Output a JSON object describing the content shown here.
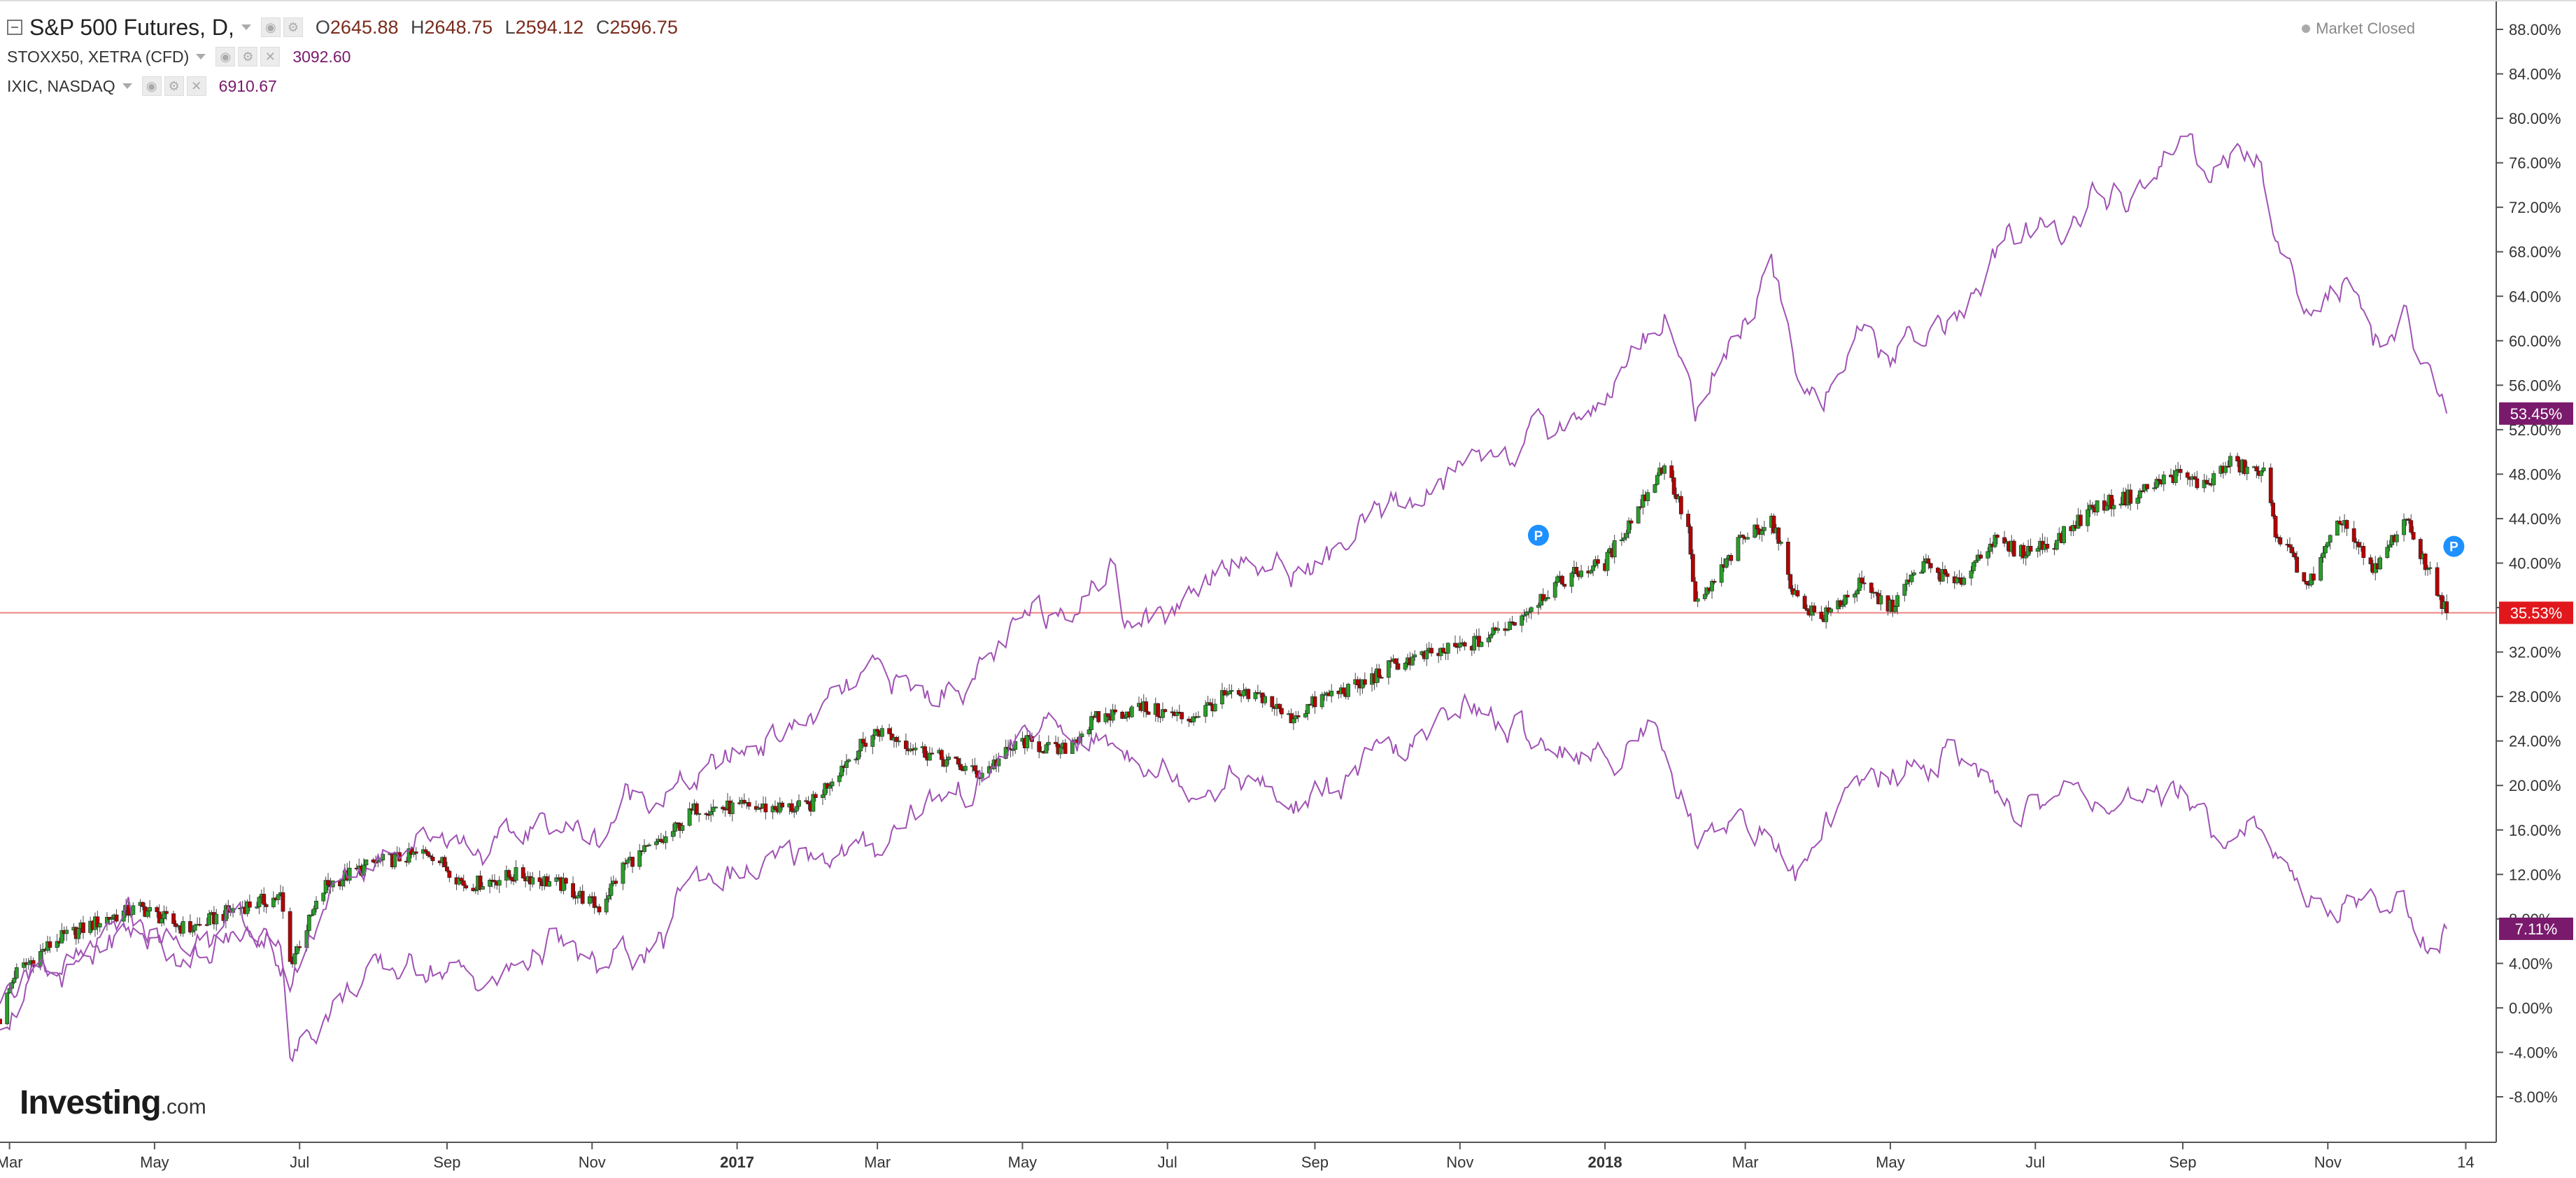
{
  "chart_data": {
    "type": "line",
    "title": "S&P 500 Futures, D,",
    "ohlc": {
      "o_label": "O",
      "o": "2645.88",
      "h_label": "H",
      "h": "2648.75",
      "l_label": "L",
      "l": "2594.12",
      "c_label": "C",
      "c": "2596.75"
    },
    "comparisons": [
      {
        "name": "STOXX50, XETRA (CFD)",
        "last": "3092.60"
      },
      {
        "name": "IXIC, NASDAQ",
        "last": "6910.67"
      }
    ],
    "status": "Market Closed",
    "y_axis": {
      "unit": "%",
      "ylim": [
        -10,
        90
      ],
      "ticks": [
        "88.00%",
        "84.00%",
        "80.00%",
        "76.00%",
        "72.00%",
        "68.00%",
        "64.00%",
        "60.00%",
        "56.00%",
        "52.00%",
        "48.00%",
        "44.00%",
        "40.00%",
        "36.00%",
        "32.00%",
        "28.00%",
        "24.00%",
        "20.00%",
        "16.00%",
        "12.00%",
        "8.00%",
        "4.00%",
        "0.00%",
        "-4.00%",
        "-8.00%"
      ]
    },
    "x_axis": {
      "xlim": [
        "2016-02-26",
        "2019-01-02"
      ],
      "ticks": [
        {
          "date": "2016-03-01",
          "label": "Mar",
          "bold": false
        },
        {
          "date": "2016-05-01",
          "label": "May",
          "bold": false
        },
        {
          "date": "2016-07-01",
          "label": "Jul",
          "bold": false
        },
        {
          "date": "2016-09-01",
          "label": "Sep",
          "bold": false
        },
        {
          "date": "2016-11-01",
          "label": "Nov",
          "bold": false
        },
        {
          "date": "2017-01-01",
          "label": "2017",
          "bold": true
        },
        {
          "date": "2017-03-01",
          "label": "Mar",
          "bold": false
        },
        {
          "date": "2017-05-01",
          "label": "May",
          "bold": false
        },
        {
          "date": "2017-07-01",
          "label": "Jul",
          "bold": false
        },
        {
          "date": "2017-09-01",
          "label": "Sep",
          "bold": false
        },
        {
          "date": "2017-11-01",
          "label": "Nov",
          "bold": false
        },
        {
          "date": "2018-01-01",
          "label": "2018",
          "bold": true
        },
        {
          "date": "2018-03-01",
          "label": "Mar",
          "bold": false
        },
        {
          "date": "2018-05-01",
          "label": "May",
          "bold": false
        },
        {
          "date": "2018-07-01",
          "label": "Jul",
          "bold": false
        },
        {
          "date": "2018-09-01",
          "label": "Sep",
          "bold": false
        },
        {
          "date": "2018-11-01",
          "label": "Nov",
          "bold": false
        },
        {
          "date": "2018-12-29",
          "label": "14",
          "bold": false
        }
      ]
    },
    "series": [
      {
        "style": "candles",
        "color_up": "#2a9d2a",
        "color_down": "#b30000",
        "points": [
          [
            "2016-02-26",
            -1
          ],
          [
            "2016-03-03",
            3
          ],
          [
            "2016-03-20",
            6
          ],
          [
            "2016-04-10",
            8
          ],
          [
            "2016-04-25",
            9
          ],
          [
            "2016-05-15",
            7
          ],
          [
            "2016-06-05",
            9
          ],
          [
            "2016-06-23",
            10
          ],
          [
            "2016-06-27",
            4
          ],
          [
            "2016-07-12",
            11
          ],
          [
            "2016-08-01",
            13
          ],
          [
            "2016-08-25",
            14
          ],
          [
            "2016-09-09",
            11
          ],
          [
            "2016-10-01",
            12
          ],
          [
            "2016-10-20",
            11
          ],
          [
            "2016-11-04",
            9
          ],
          [
            "2016-11-15",
            13
          ],
          [
            "2016-12-01",
            15
          ],
          [
            "2016-12-15",
            18
          ],
          [
            "2017-01-10",
            18
          ],
          [
            "2017-01-31",
            18
          ],
          [
            "2017-02-15",
            22
          ],
          [
            "2017-03-01",
            25
          ],
          [
            "2017-03-21",
            23
          ],
          [
            "2017-04-13",
            21
          ],
          [
            "2017-05-01",
            24
          ],
          [
            "2017-05-17",
            23
          ],
          [
            "2017-06-01",
            26
          ],
          [
            "2017-06-20",
            27
          ],
          [
            "2017-07-10",
            26
          ],
          [
            "2017-07-25",
            28
          ],
          [
            "2017-08-10",
            28
          ],
          [
            "2017-08-21",
            26
          ],
          [
            "2017-09-05",
            28
          ],
          [
            "2017-09-20",
            29
          ],
          [
            "2017-10-05",
            31
          ],
          [
            "2017-10-25",
            32
          ],
          [
            "2017-11-10",
            33
          ],
          [
            "2017-11-25",
            35
          ],
          [
            "2017-12-05",
            37
          ],
          [
            "2017-12-18",
            39
          ],
          [
            "2018-01-01",
            40
          ],
          [
            "2018-01-15",
            45
          ],
          [
            "2018-01-26",
            49
          ],
          [
            "2018-02-05",
            43
          ],
          [
            "2018-02-08",
            36
          ],
          [
            "2018-02-15",
            38
          ],
          [
            "2018-02-27",
            42
          ],
          [
            "2018-03-12",
            44
          ],
          [
            "2018-03-22",
            37
          ],
          [
            "2018-04-02",
            35
          ],
          [
            "2018-04-18",
            38
          ],
          [
            "2018-05-01",
            36
          ],
          [
            "2018-05-15",
            40
          ],
          [
            "2018-05-29",
            38
          ],
          [
            "2018-06-12",
            42
          ],
          [
            "2018-06-25",
            41
          ],
          [
            "2018-07-10",
            42
          ],
          [
            "2018-07-25",
            45
          ],
          [
            "2018-08-10",
            46
          ],
          [
            "2018-08-29",
            48
          ],
          [
            "2018-09-10",
            47
          ],
          [
            "2018-09-21",
            49
          ],
          [
            "2018-10-05",
            48
          ],
          [
            "2018-10-10",
            43
          ],
          [
            "2018-10-24",
            38
          ],
          [
            "2018-11-07",
            44
          ],
          [
            "2018-11-20",
            39
          ],
          [
            "2018-12-03",
            44
          ],
          [
            "2018-12-10",
            41
          ],
          [
            "2018-12-21",
            35.53
          ]
        ]
      },
      {
        "style": "line",
        "name": "STOXX50, XETRA (CFD)",
        "color": "#a052b4",
        "points": [
          [
            "2016-02-26",
            1
          ],
          [
            "2016-03-10",
            4
          ],
          [
            "2016-04-01",
            4
          ],
          [
            "2016-04-20",
            7
          ],
          [
            "2016-05-10",
            5
          ],
          [
            "2016-06-01",
            6
          ],
          [
            "2016-06-23",
            7
          ],
          [
            "2016-06-27",
            -5
          ],
          [
            "2016-07-12",
            0
          ],
          [
            "2016-08-01",
            3
          ],
          [
            "2016-08-25",
            4
          ],
          [
            "2016-09-20",
            2
          ],
          [
            "2016-10-15",
            6
          ],
          [
            "2016-11-04",
            3
          ],
          [
            "2016-11-15",
            5
          ],
          [
            "2016-12-01",
            5
          ],
          [
            "2016-12-10",
            12
          ],
          [
            "2017-01-10",
            12
          ],
          [
            "2017-02-01",
            14
          ],
          [
            "2017-02-28",
            14
          ],
          [
            "2017-03-15",
            18
          ],
          [
            "2017-04-13",
            20
          ],
          [
            "2017-04-24",
            23
          ],
          [
            "2017-05-05",
            25
          ],
          [
            "2017-06-01",
            24
          ],
          [
            "2017-06-20",
            23
          ],
          [
            "2017-07-10",
            20
          ],
          [
            "2017-07-31",
            21
          ],
          [
            "2017-08-21",
            18
          ],
          [
            "2017-09-05",
            19
          ],
          [
            "2017-09-25",
            22
          ],
          [
            "2017-10-20",
            24
          ],
          [
            "2017-11-01",
            28
          ],
          [
            "2017-11-20",
            25
          ],
          [
            "2017-12-10",
            24
          ],
          [
            "2018-01-01",
            22
          ],
          [
            "2018-01-23",
            26
          ],
          [
            "2018-02-09",
            15
          ],
          [
            "2018-02-26",
            18
          ],
          [
            "2018-03-23",
            12
          ],
          [
            "2018-04-05",
            17
          ],
          [
            "2018-04-25",
            21
          ],
          [
            "2018-05-15",
            22
          ],
          [
            "2018-06-01",
            23
          ],
          [
            "2018-06-15",
            18
          ],
          [
            "2018-07-01",
            18
          ],
          [
            "2018-07-20",
            20
          ],
          [
            "2018-08-15",
            17
          ],
          [
            "2018-08-31",
            20
          ],
          [
            "2018-09-15",
            16
          ],
          [
            "2018-10-01",
            17
          ],
          [
            "2018-10-20",
            10
          ],
          [
            "2018-11-05",
            9
          ],
          [
            "2018-11-20",
            10
          ],
          [
            "2018-12-03",
            9
          ],
          [
            "2018-12-14",
            6
          ],
          [
            "2018-12-21",
            7.11
          ]
        ]
      },
      {
        "style": "line",
        "name": "IXIC, NASDAQ",
        "color": "#a052b4",
        "points": [
          [
            "2016-02-26",
            -1
          ],
          [
            "2016-03-10",
            2
          ],
          [
            "2016-04-01",
            3
          ],
          [
            "2016-04-20",
            8
          ],
          [
            "2016-05-15",
            5
          ],
          [
            "2016-06-08",
            8
          ],
          [
            "2016-06-27",
            2
          ],
          [
            "2016-07-12",
            10
          ],
          [
            "2016-08-10",
            15
          ],
          [
            "2016-08-31",
            16
          ],
          [
            "2016-09-20",
            14
          ],
          [
            "2016-10-15",
            17
          ],
          [
            "2016-11-04",
            15
          ],
          [
            "2016-11-15",
            19
          ],
          [
            "2016-12-13",
            20
          ],
          [
            "2017-01-10",
            24
          ],
          [
            "2017-02-01",
            26
          ],
          [
            "2017-03-01",
            30
          ],
          [
            "2017-03-21",
            28
          ],
          [
            "2017-04-13",
            30
          ],
          [
            "2017-05-05",
            35
          ],
          [
            "2017-05-31",
            38
          ],
          [
            "2017-06-09",
            40
          ],
          [
            "2017-06-12",
            36
          ],
          [
            "2017-06-30",
            35
          ],
          [
            "2017-07-25",
            41
          ],
          [
            "2017-08-21",
            39
          ],
          [
            "2017-09-05",
            40
          ],
          [
            "2017-10-05",
            45
          ],
          [
            "2017-10-25",
            47
          ],
          [
            "2017-11-08",
            50
          ],
          [
            "2017-11-30",
            51
          ],
          [
            "2017-12-10",
            52
          ],
          [
            "2018-01-01",
            55
          ],
          [
            "2018-01-26",
            63
          ],
          [
            "2018-02-08",
            54
          ],
          [
            "2018-02-26",
            61
          ],
          [
            "2018-03-12",
            66
          ],
          [
            "2018-03-22",
            58
          ],
          [
            "2018-04-02",
            55
          ],
          [
            "2018-04-18",
            60
          ],
          [
            "2018-05-01",
            58
          ],
          [
            "2018-05-15",
            61
          ],
          [
            "2018-05-29",
            62
          ],
          [
            "2018-06-20",
            69
          ],
          [
            "2018-07-10",
            70
          ],
          [
            "2018-07-25",
            73
          ],
          [
            "2018-08-10",
            72
          ],
          [
            "2018-08-29",
            78
          ],
          [
            "2018-09-10",
            75
          ],
          [
            "2018-09-25",
            77
          ],
          [
            "2018-10-03",
            76
          ],
          [
            "2018-10-10",
            69
          ],
          [
            "2018-10-24",
            63
          ],
          [
            "2018-11-07",
            65
          ],
          [
            "2018-11-20",
            58
          ],
          [
            "2018-12-03",
            63
          ],
          [
            "2018-12-10",
            58
          ],
          [
            "2018-12-21",
            53.45
          ]
        ]
      }
    ],
    "badges": [
      {
        "text": "53.45%",
        "value": 53.45,
        "color": "#7a1a6c"
      },
      {
        "text": "35.53%",
        "value": 35.53,
        "color": "#e0181c"
      },
      {
        "text": "7.11%",
        "value": 7.11,
        "color": "#7a1a6c"
      }
    ],
    "price_line": {
      "value": 35.53,
      "color": "#f08080"
    },
    "event_markers": [
      {
        "text": "P",
        "date": "2017-12-04",
        "value": 42.5,
        "color": "#1e90ff"
      },
      {
        "text": "P",
        "date": "2018-12-24",
        "value": 41.5,
        "color": "#1e90ff"
      }
    ],
    "watermark": {
      "brand": "Investing",
      "suffix": ".com"
    }
  }
}
